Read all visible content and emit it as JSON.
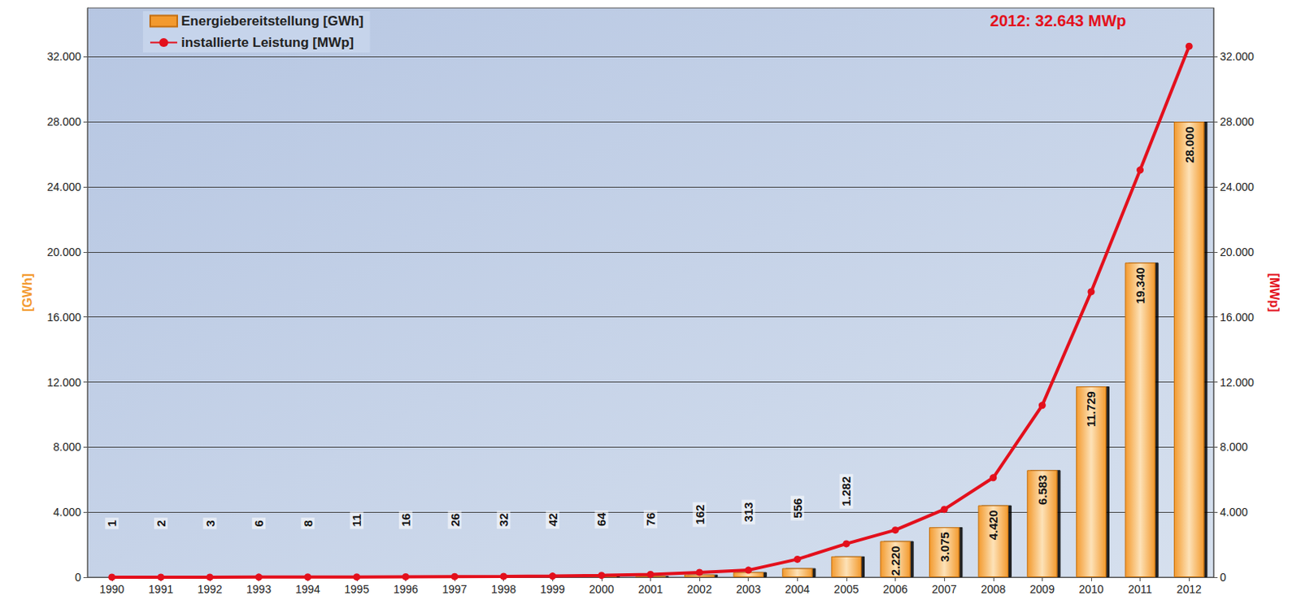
{
  "chart_data": {
    "type": "bar",
    "annotation": "2012: 32.643 MWp",
    "ylabel": "[GWh]",
    "y2label": "[MWp]",
    "legend": "top-left",
    "grid": true,
    "categories": [
      "1990",
      "1991",
      "1992",
      "1993",
      "1994",
      "1995",
      "1996",
      "1997",
      "1998",
      "1999",
      "2000",
      "2001",
      "2002",
      "2003",
      "2004",
      "2005",
      "2006",
      "2007",
      "2008",
      "2009",
      "2010",
      "2011",
      "2012"
    ],
    "series": [
      {
        "name": "Energiebereitstellung [GWh]",
        "type": "bar",
        "color": "#f39a2e",
        "data_labels": true,
        "values": [
          1,
          2,
          3,
          6,
          8,
          11,
          16,
          26,
          32,
          42,
          64,
          76,
          162,
          313,
          556,
          1282,
          2220,
          3075,
          4420,
          6583,
          11729,
          19340,
          28000
        ],
        "value_labels": [
          "1",
          "2",
          "3",
          "6",
          "8",
          "11",
          "16",
          "26",
          "32",
          "42",
          "64",
          "76",
          "162",
          "313",
          "556",
          "1.282",
          "2.220",
          "3.075",
          "4.420",
          "6.583",
          "11.729",
          "19.340",
          "28.000"
        ]
      },
      {
        "name": "installierte Leistung [MWp]",
        "type": "line",
        "axis": "y2",
        "color": "#e3101c",
        "marker": "circle",
        "values": [
          2,
          3,
          6,
          9,
          12,
          18,
          28,
          42,
          54,
          70,
          114,
          176,
          296,
          435,
          1105,
          2056,
          2899,
          4170,
          6120,
          10566,
          17554,
          25039,
          32643
        ]
      }
    ],
    "ylim": [
      0,
      35000
    ],
    "yticks": [
      0,
      {
        "value": 4000,
        "label": "4.000"
      },
      {
        "value": 8000,
        "label": "8.000"
      },
      {
        "value": 12000,
        "label": "12.000"
      },
      {
        "value": 16000,
        "label": "16.000"
      },
      {
        "value": 20000,
        "label": "20.000"
      },
      {
        "value": 24000,
        "label": "24.000"
      },
      {
        "value": 28000,
        "label": "28.000"
      },
      {
        "value": 32000,
        "label": "32.000"
      }
    ],
    "y2lim": [
      0,
      35000
    ],
    "y2ticks": [
      0,
      {
        "value": 4000,
        "label": "4.000"
      },
      {
        "value": 8000,
        "label": "8.000"
      },
      {
        "value": 12000,
        "label": "12.000"
      },
      {
        "value": 16000,
        "label": "16.000"
      },
      {
        "value": 20000,
        "label": "20.000"
      },
      {
        "value": 24000,
        "label": "24.000"
      },
      {
        "value": 28000,
        "label": "28.000"
      },
      {
        "value": 32000,
        "label": "32.000"
      }
    ]
  }
}
